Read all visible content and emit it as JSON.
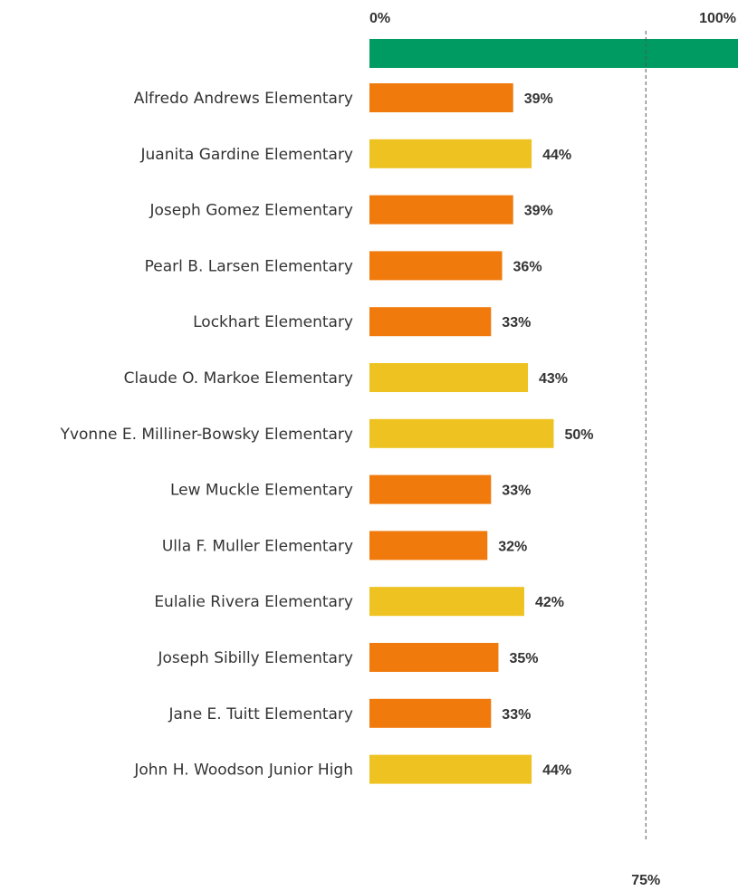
{
  "chart_data": {
    "type": "bar",
    "orientation": "horizontal",
    "xlim": [
      0,
      100
    ],
    "axis_tick_labels": [
      "0%",
      "100%"
    ],
    "reference_line": {
      "value": 75,
      "label": "75%"
    },
    "top_bar": {
      "value": 100,
      "color": "#009b62"
    },
    "categories": [
      "Alfredo Andrews Elementary",
      "Juanita Gardine Elementary",
      "Joseph Gomez Elementary",
      "Pearl B. Larsen Elementary",
      "Lockhart Elementary",
      "Claude O. Markoe Elementary",
      "Yvonne E. Milliner-Bowsky Elementary",
      "Lew Muckle Elementary",
      "Ulla F. Muller Elementary",
      "Eulalie Rivera Elementary",
      "Joseph Sibilly Elementary",
      "Jane E. Tuitt Elementary",
      "John H. Woodson Junior High"
    ],
    "values": [
      39,
      44,
      39,
      36,
      33,
      43,
      50,
      33,
      32,
      42,
      35,
      33,
      44
    ],
    "value_labels": [
      "39%",
      "44%",
      "39%",
      "36%",
      "33%",
      "43%",
      "50%",
      "33%",
      "32%",
      "42%",
      "35%",
      "33%",
      "44%"
    ],
    "bar_colors": [
      "#f07a0c",
      "#edc221",
      "#f07a0c",
      "#f07a0c",
      "#f07a0c",
      "#edc221",
      "#edc221",
      "#f07a0c",
      "#f07a0c",
      "#edc221",
      "#f07a0c",
      "#f07a0c",
      "#edc221"
    ],
    "grid": false,
    "legend": "none"
  }
}
